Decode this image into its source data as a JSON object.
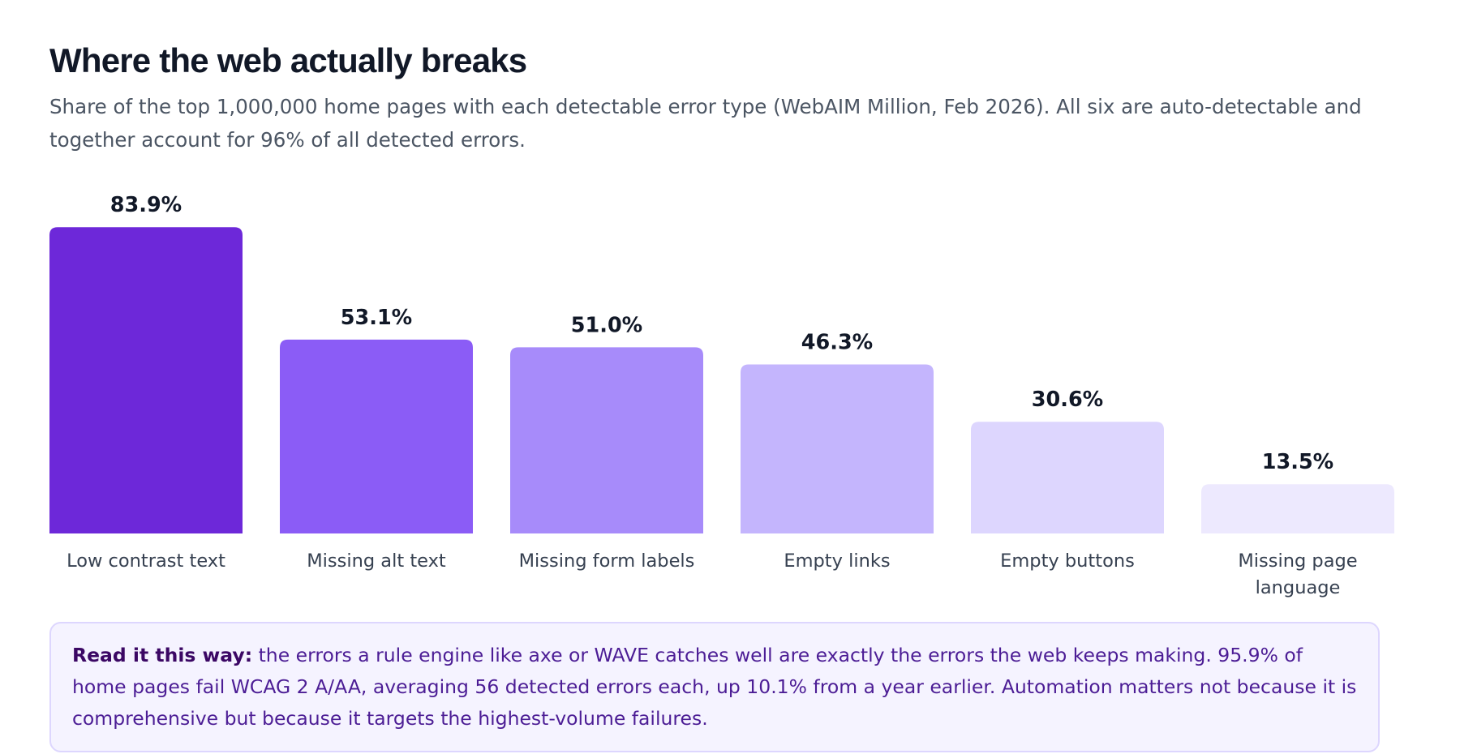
{
  "header": {
    "title": "Where the web actually breaks",
    "subtitle": "Share of the top 1,000,000 home pages with each detectable error type (WebAIM Million, Feb 2026). All six are auto-detectable and together account for 96% of all detected errors."
  },
  "chart_data": {
    "type": "bar",
    "title": "",
    "xlabel": "",
    "ylabel": "",
    "ylim": [
      0,
      100
    ],
    "grid": false,
    "legend": "none",
    "categories": [
      "Low contrast text",
      "Missing alt text",
      "Missing form labels",
      "Empty links",
      "Empty buttons",
      "Missing page language"
    ],
    "category_lines": [
      [
        "Low contrast text"
      ],
      [
        "Missing alt text"
      ],
      [
        "Missing form labels"
      ],
      [
        "Empty links"
      ],
      [
        "Empty buttons"
      ],
      [
        "Missing page",
        "language"
      ]
    ],
    "values": [
      83.9,
      53.1,
      51.0,
      46.3,
      30.6,
      13.5
    ],
    "value_labels": [
      "83.9%",
      "53.1%",
      "51.0%",
      "46.3%",
      "30.6%",
      "13.5%"
    ],
    "colors": [
      "#6d28d9",
      "#8b5cf6",
      "#a78bfa",
      "#c4b5fd",
      "#ddd6fe",
      "#ede9fe"
    ]
  },
  "callout": {
    "lead": "Read it this way:",
    "body": " the errors a rule engine like axe or WAVE catches well are exactly the errors the web keeps making. 95.9% of home pages fail WCAG 2 A/AA, averaging 56 detected errors each, up 10.1% from a year earlier. Automation matters not because it is comprehensive but because it targets the highest-volume failures."
  }
}
